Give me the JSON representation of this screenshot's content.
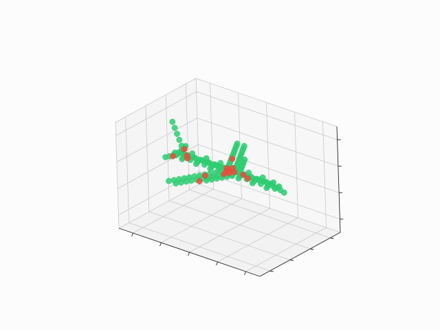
{
  "chart_data": {
    "type": "scatter",
    "projection": "3d",
    "title": "",
    "xlabel": "",
    "ylabel": "",
    "zlabel": "",
    "grid": true,
    "tick_labels_visible": false,
    "x_ticks": [
      -0.8,
      -0.4,
      0.0,
      0.4,
      0.8
    ],
    "y_ticks": [
      -0.6,
      -0.2,
      0.2,
      0.6
    ],
    "z_ticks": [
      -0.3,
      -0.1,
      0.1,
      0.3
    ],
    "xlim": [
      -1.0,
      1.0
    ],
    "ylim": [
      -0.8,
      0.8
    ],
    "zlim": [
      -0.4,
      0.4
    ],
    "view": {
      "elev": 30,
      "azim": -60
    },
    "series": [
      {
        "color": "#2ecc71",
        "points": [
          [
            -0.75,
            0.0,
            0.05
          ],
          [
            -0.7,
            0.0,
            0.06
          ],
          [
            -0.65,
            0.01,
            0.06
          ],
          [
            -0.6,
            0.0,
            0.06
          ],
          [
            -0.55,
            0.0,
            0.06
          ],
          [
            -0.5,
            0.01,
            0.06
          ],
          [
            -0.45,
            0.0,
            0.06
          ],
          [
            -0.4,
            0.0,
            0.06
          ],
          [
            -0.35,
            0.01,
            0.06
          ],
          [
            -0.3,
            0.0,
            0.06
          ],
          [
            -0.25,
            0.0,
            0.06
          ],
          [
            -0.2,
            0.01,
            0.06
          ],
          [
            -0.15,
            0.0,
            0.06
          ],
          [
            -0.1,
            0.0,
            0.06
          ],
          [
            -0.05,
            0.01,
            0.06
          ],
          [
            0.0,
            0.0,
            0.06
          ],
          [
            0.05,
            0.0,
            0.06
          ],
          [
            0.1,
            0.01,
            0.06
          ],
          [
            0.15,
            0.0,
            0.06
          ],
          [
            0.2,
            0.0,
            0.06
          ],
          [
            0.25,
            0.01,
            0.06
          ],
          [
            0.3,
            0.0,
            0.06
          ],
          [
            0.35,
            0.0,
            0.06
          ],
          [
            0.4,
            0.01,
            0.06
          ],
          [
            0.45,
            0.0,
            0.06
          ],
          [
            0.5,
            0.0,
            0.06
          ],
          [
            0.55,
            0.01,
            0.06
          ],
          [
            0.6,
            0.0,
            0.06
          ],
          [
            0.65,
            0.0,
            0.05
          ],
          [
            0.7,
            0.0,
            0.05
          ],
          [
            0.75,
            0.0,
            0.04
          ],
          [
            0.8,
            0.0,
            0.03
          ],
          [
            -0.7,
            0.04,
            0.05
          ],
          [
            -0.6,
            0.04,
            0.05
          ],
          [
            -0.5,
            0.04,
            0.05
          ],
          [
            -0.4,
            0.04,
            0.05
          ],
          [
            -0.3,
            0.04,
            0.05
          ],
          [
            -0.2,
            0.04,
            0.05
          ],
          [
            -0.1,
            0.04,
            0.05
          ],
          [
            0.0,
            0.04,
            0.05
          ],
          [
            0.1,
            0.04,
            0.05
          ],
          [
            0.2,
            0.04,
            0.05
          ],
          [
            0.3,
            0.04,
            0.05
          ],
          [
            0.4,
            0.04,
            0.05
          ],
          [
            0.5,
            0.04,
            0.05
          ],
          [
            0.6,
            0.04,
            0.05
          ],
          [
            0.7,
            0.04,
            0.05
          ],
          [
            -0.7,
            -0.04,
            0.05
          ],
          [
            -0.6,
            -0.04,
            0.05
          ],
          [
            -0.5,
            -0.04,
            0.05
          ],
          [
            -0.4,
            -0.04,
            0.05
          ],
          [
            -0.3,
            -0.04,
            0.05
          ],
          [
            -0.2,
            -0.04,
            0.05
          ],
          [
            -0.1,
            -0.04,
            0.05
          ],
          [
            0.0,
            -0.04,
            0.05
          ],
          [
            0.1,
            -0.04,
            0.05
          ],
          [
            0.2,
            -0.04,
            0.05
          ],
          [
            0.3,
            -0.04,
            0.05
          ],
          [
            0.4,
            -0.04,
            0.05
          ],
          [
            0.5,
            -0.04,
            0.05
          ],
          [
            0.6,
            -0.04,
            0.05
          ],
          [
            0.7,
            -0.04,
            0.05
          ],
          [
            -0.65,
            0.0,
            0.09
          ],
          [
            -0.5,
            0.0,
            0.09
          ],
          [
            -0.3,
            0.0,
            0.09
          ],
          [
            -0.1,
            0.0,
            0.09
          ],
          [
            0.1,
            0.0,
            0.09
          ],
          [
            0.3,
            0.0,
            0.09
          ],
          [
            0.5,
            0.0,
            0.09
          ],
          [
            0.65,
            0.0,
            0.08
          ],
          [
            -0.65,
            0.0,
            0.02
          ],
          [
            -0.45,
            0.0,
            0.02
          ],
          [
            -0.25,
            0.0,
            0.02
          ],
          [
            -0.05,
            0.0,
            0.02
          ],
          [
            0.15,
            0.0,
            0.02
          ],
          [
            0.35,
            0.0,
            0.02
          ],
          [
            0.55,
            0.0,
            0.02
          ],
          [
            -0.05,
            0.08,
            0.05
          ],
          [
            -0.08,
            0.14,
            0.05
          ],
          [
            -0.11,
            0.2,
            0.05
          ],
          [
            -0.14,
            0.26,
            0.05
          ],
          [
            -0.17,
            0.32,
            0.05
          ],
          [
            -0.2,
            0.38,
            0.05
          ],
          [
            -0.23,
            0.44,
            0.05
          ],
          [
            -0.26,
            0.5,
            0.05
          ],
          [
            -0.29,
            0.56,
            0.05
          ],
          [
            -0.32,
            0.62,
            0.05
          ],
          [
            -0.35,
            0.68,
            0.05
          ],
          [
            0.05,
            0.08,
            0.05
          ],
          [
            0.02,
            0.14,
            0.05
          ],
          [
            -0.01,
            0.2,
            0.05
          ],
          [
            -0.04,
            0.26,
            0.05
          ],
          [
            -0.07,
            0.32,
            0.05
          ],
          [
            -0.1,
            0.38,
            0.05
          ],
          [
            -0.13,
            0.44,
            0.05
          ],
          [
            -0.16,
            0.5,
            0.05
          ],
          [
            -0.19,
            0.56,
            0.05
          ],
          [
            -0.22,
            0.62,
            0.05
          ],
          [
            -0.25,
            0.68,
            0.05
          ],
          [
            0.12,
            0.08,
            0.05
          ],
          [
            0.09,
            0.14,
            0.05
          ],
          [
            0.06,
            0.2,
            0.05
          ],
          [
            0.03,
            0.26,
            0.05
          ],
          [
            0.0,
            0.32,
            0.05
          ],
          [
            -0.03,
            0.38,
            0.05
          ],
          [
            -0.05,
            -0.08,
            0.05
          ],
          [
            -0.08,
            -0.14,
            0.05
          ],
          [
            -0.11,
            -0.2,
            0.05
          ],
          [
            -0.14,
            -0.26,
            0.05
          ],
          [
            -0.17,
            -0.32,
            0.05
          ],
          [
            -0.2,
            -0.38,
            0.05
          ],
          [
            -0.23,
            -0.44,
            0.05
          ],
          [
            -0.26,
            -0.5,
            0.05
          ],
          [
            -0.29,
            -0.56,
            0.05
          ],
          [
            -0.32,
            -0.62,
            0.05
          ],
          [
            -0.35,
            -0.68,
            0.05
          ],
          [
            0.05,
            -0.08,
            0.05
          ],
          [
            0.02,
            -0.14,
            0.05
          ],
          [
            -0.01,
            -0.2,
            0.05
          ],
          [
            -0.04,
            -0.26,
            0.05
          ],
          [
            -0.07,
            -0.32,
            0.05
          ],
          [
            -0.1,
            -0.38,
            0.05
          ],
          [
            -0.13,
            -0.44,
            0.05
          ],
          [
            -0.16,
            -0.5,
            0.05
          ],
          [
            -0.19,
            -0.56,
            0.05
          ],
          [
            -0.22,
            -0.62,
            0.05
          ],
          [
            -0.25,
            -0.68,
            0.05
          ],
          [
            0.12,
            -0.08,
            0.05
          ],
          [
            0.09,
            -0.14,
            0.05
          ],
          [
            0.06,
            -0.2,
            0.05
          ],
          [
            0.03,
            -0.26,
            0.05
          ],
          [
            0.0,
            -0.32,
            0.05
          ],
          [
            -0.03,
            -0.38,
            0.05
          ],
          [
            -0.68,
            0.05,
            0.06
          ],
          [
            -0.7,
            0.1,
            0.06
          ],
          [
            -0.72,
            0.15,
            0.06
          ],
          [
            -0.74,
            0.2,
            0.06
          ],
          [
            -0.68,
            -0.05,
            0.06
          ],
          [
            -0.7,
            -0.1,
            0.06
          ],
          [
            -0.72,
            -0.15,
            0.06
          ],
          [
            -0.74,
            -0.2,
            0.06
          ],
          [
            -0.65,
            0.0,
            0.12
          ],
          [
            -0.68,
            0.0,
            0.16
          ],
          [
            -0.71,
            0.0,
            0.2
          ],
          [
            -0.74,
            0.0,
            0.24
          ],
          [
            -0.77,
            0.0,
            0.28
          ]
        ]
      },
      {
        "color": "#e74c3c",
        "points": [
          [
            -0.6,
            0.03,
            0.05
          ],
          [
            -0.55,
            -0.03,
            0.05
          ],
          [
            -0.05,
            0.05,
            0.05
          ],
          [
            0.0,
            0.03,
            0.05
          ],
          [
            0.05,
            -0.04,
            0.05
          ],
          [
            -0.02,
            0.0,
            0.04
          ],
          [
            0.08,
            0.02,
            0.05
          ],
          [
            -0.15,
            0.3,
            0.05
          ],
          [
            -0.12,
            -0.28,
            0.05
          ],
          [
            0.0,
            0.1,
            0.05
          ],
          [
            0.02,
            -0.1,
            0.05
          ],
          [
            0.2,
            0.03,
            0.05
          ],
          [
            -0.7,
            0.12,
            0.06
          ],
          [
            -0.69,
            -0.12,
            0.06
          ],
          [
            0.3,
            -0.02,
            0.05
          ],
          [
            -0.08,
            -0.45,
            0.05
          ]
        ]
      }
    ]
  }
}
